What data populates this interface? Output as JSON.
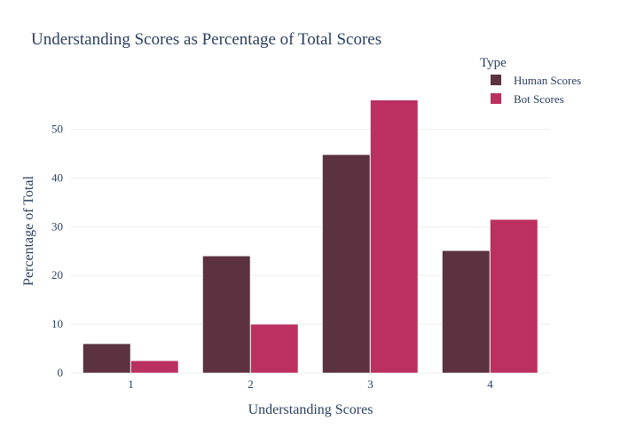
{
  "colors": {
    "human": "#5c3240",
    "bot": "#bb3060",
    "text": "#2a3f5f",
    "grid": "#ebedf0"
  },
  "chart_data": {
    "type": "bar",
    "title": "Understanding Scores as Percentage of Total Scores",
    "xlabel": "Understanding Scores",
    "ylabel": "Percentage of Total",
    "categories": [
      "1",
      "2",
      "3",
      "4"
    ],
    "series": [
      {
        "name": "Human Scores",
        "values": [
          6.0,
          24.0,
          44.8,
          25.1
        ]
      },
      {
        "name": "Bot Scores",
        "values": [
          2.5,
          10.0,
          56.0,
          31.5
        ]
      }
    ],
    "ylim": [
      0,
      60.5
    ],
    "yticks": [
      0,
      10,
      20,
      30,
      40,
      50
    ],
    "legend": {
      "title": "Type",
      "placement": "top-right"
    },
    "grid": true
  }
}
